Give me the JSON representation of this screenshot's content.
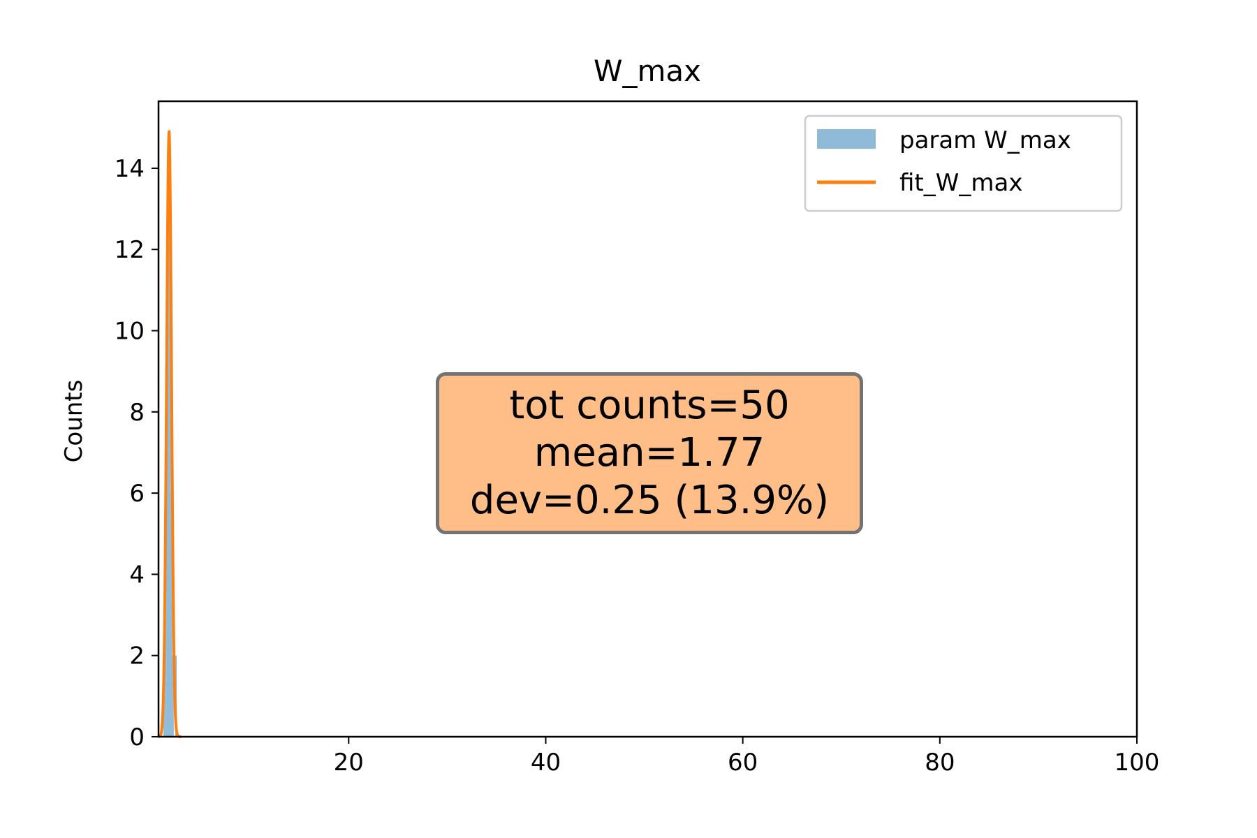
{
  "chart_data": {
    "type": "bar",
    "title": "W_max",
    "xlabel": "",
    "ylabel": "Counts",
    "xlim": [
      0.7,
      100
    ],
    "ylim": [
      0,
      15.65
    ],
    "x_ticks": [
      20,
      40,
      60,
      80,
      100
    ],
    "y_ticks": [
      0,
      2,
      4,
      6,
      8,
      10,
      12,
      14
    ],
    "grid": false,
    "legend_position": "top-right",
    "series": [
      {
        "name": "param W_max",
        "kind": "histogram",
        "color": "#1f77b4",
        "opacity": 0.5,
        "bins": [
          {
            "x0": 1.2,
            "x1": 1.35,
            "count": 1
          },
          {
            "x0": 1.35,
            "x1": 1.5,
            "count": 4
          },
          {
            "x0": 1.5,
            "x1": 1.65,
            "count": 9
          },
          {
            "x0": 1.65,
            "x1": 1.8,
            "count": 14
          },
          {
            "x0": 1.8,
            "x1": 1.95,
            "count": 12
          },
          {
            "x0": 1.95,
            "x1": 2.1,
            "count": 6
          },
          {
            "x0": 2.1,
            "x1": 2.25,
            "count": 2
          },
          {
            "x0": 2.25,
            "x1": 2.4,
            "count": 0
          },
          {
            "x0": 2.4,
            "x1": 2.55,
            "count": 2
          }
        ]
      },
      {
        "name": "fit_W_max",
        "kind": "gaussian",
        "color": "#ff7f0e",
        "mean": 1.77,
        "sigma": 0.25,
        "peak": 14.9,
        "x_range": [
          0.7,
          3.0
        ]
      }
    ]
  },
  "stats_box": {
    "line1": "tot counts=50",
    "line2": "mean=1.77",
    "line3": "dev=0.25 (13.9%)",
    "background": "#ffbe88",
    "border_color": "#737373"
  }
}
